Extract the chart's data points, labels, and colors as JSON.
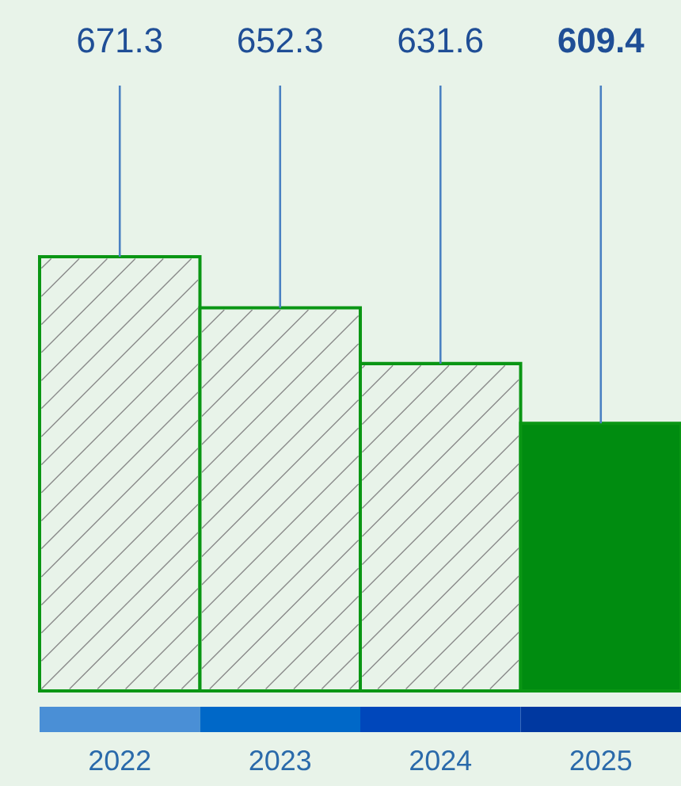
{
  "chart_data": {
    "type": "bar",
    "categories": [
      "2022",
      "2023",
      "2024",
      "2025"
    ],
    "values": [
      671.3,
      652.3,
      631.6,
      609.4
    ],
    "value_labels": [
      "671.3",
      "652.3",
      "631.6",
      "609.4"
    ],
    "colors": [
      "#e8f3e9",
      "#e8f3e9",
      "#e8f3e9",
      "#008c10"
    ],
    "ylim": [
      510,
      671.3
    ],
    "tick_labels": "x"
  }
}
